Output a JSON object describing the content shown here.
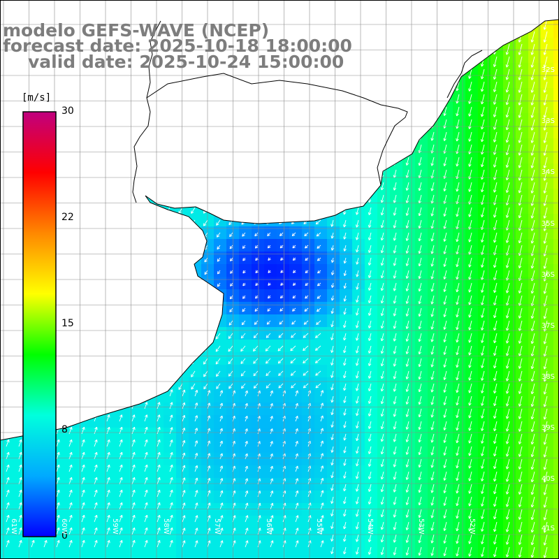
{
  "title": {
    "line1": "modelo GEFS-WAVE (NCEP)",
    "line2": "forecast date: 2025-10-18 18:00:00",
    "line3": "valid date: 2025-10-24 15:00:00"
  },
  "colorbar": {
    "unit": "[m/s]",
    "ticks": [
      "30",
      "22",
      "15",
      "8",
      "0"
    ],
    "tick_values": [
      30,
      22,
      15,
      8,
      0
    ],
    "colors": [
      "#0000ff",
      "#00aaff",
      "#00ffdd",
      "#00ff00",
      "#ffff00",
      "#ff8800",
      "#ff0000",
      "#c0007f"
    ]
  },
  "map": {
    "variable": "wind speed and direction",
    "lon_range": [
      -62,
      -51
    ],
    "lat_range": [
      -41,
      -32
    ],
    "lat_labels": [
      "32S",
      "33S",
      "34S",
      "35S",
      "36S",
      "37S",
      "38S",
      "39S",
      "40S",
      "41S"
    ],
    "lon_labels": [
      "61W",
      "60W",
      "59W",
      "58W",
      "57W",
      "56W",
      "55W",
      "54W",
      "53W",
      "52W"
    ],
    "land_color": "#ffffff",
    "grid_color": "#8c8c8c",
    "coast_color": "#000000",
    "arrow_color": "#ffffff"
  }
}
